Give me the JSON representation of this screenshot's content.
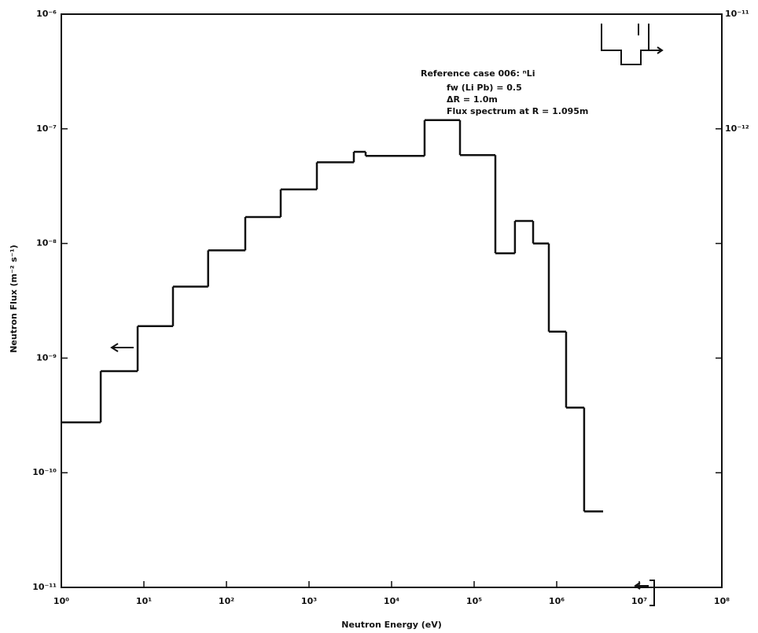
{
  "chart_data": {
    "type": "histogram",
    "xlabel": "Neutron Energy (eV)",
    "ylabel": "Neutron Flux (m⁻² s⁻¹)",
    "annotations": [
      "Reference case 006: ⁿLi",
      "fw (Li Pb) = 0.5",
      "ΔR = 1.0m",
      "Flux spectrum at R = 1.095m"
    ],
    "xscale": "log",
    "yscale": "log",
    "xlim": [
      1,
      100000000
    ],
    "ylim": [
      1e-11,
      1e-06
    ],
    "y2lim": [
      1e-16,
      1e-11
    ],
    "xticks": [
      {
        "value": 1,
        "label": "10⁰"
      },
      {
        "value": 10,
        "label": "10¹"
      },
      {
        "value": 100,
        "label": "10²"
      },
      {
        "value": 1000,
        "label": "10³"
      },
      {
        "value": 10000,
        "label": "10⁴"
      },
      {
        "value": 100000,
        "label": "10⁵"
      },
      {
        "value": 1000000,
        "label": "10⁶"
      },
      {
        "value": 10000000,
        "label": "10⁷"
      },
      {
        "value": 100000000,
        "label": "10⁸"
      }
    ],
    "yticks": [
      {
        "value": 1e-11,
        "label": "10⁻¹¹"
      },
      {
        "value": 1e-10,
        "label": "10⁻¹⁰"
      },
      {
        "value": 1e-09,
        "label": "10⁻⁹"
      },
      {
        "value": 1e-08,
        "label": "10⁻⁸"
      },
      {
        "value": 1e-07,
        "label": "10⁻⁷"
      },
      {
        "value": 1e-06,
        "label": "10⁻⁶"
      }
    ],
    "y2ticks": [
      {
        "value": 1e-16,
        "label": null
      },
      {
        "value": 1e-15,
        "label": null
      },
      {
        "value": 1e-14,
        "label": null
      },
      {
        "value": 1e-13,
        "label": null
      },
      {
        "value": 1e-12,
        "label": "10⁻¹²"
      },
      {
        "value": 1e-11,
        "label": "10⁻¹¹"
      }
    ],
    "bins": [
      1,
      3,
      8.4,
      22.5,
      60,
      169,
      454,
      1245,
      3490,
      4850,
      25100,
      67400,
      180700,
      312000,
      518000,
      803000,
      1300000,
      2150000,
      3650000
    ],
    "values": [
      2.75e-10,
      7.7e-10,
      1.9e-09,
      4.2e-09,
      8.7e-09,
      1.7e-08,
      2.96e-08,
      5.1e-08,
      6.3e-08,
      5.8e-08,
      1.19e-07,
      5.9e-08,
      8.2e-09,
      1.57e-08,
      1e-08,
      1.7e-09,
      3.7e-10,
      4.6e-11
    ],
    "color": "#111111"
  }
}
